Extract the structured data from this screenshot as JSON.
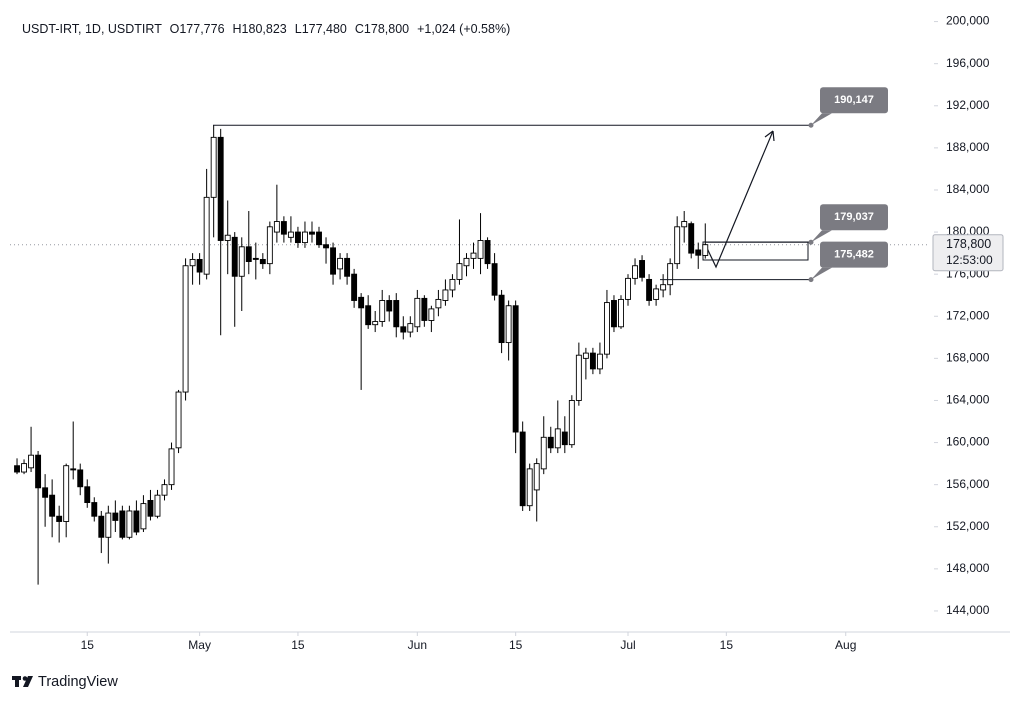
{
  "chart_data": {
    "type": "candlestick",
    "header": {
      "symbol": "USDT-IRT, 1D, USDTIRT",
      "open": "O177,776",
      "high": "H180,823",
      "low": "L177,480",
      "close": "C178,800",
      "change": "+1,024 (+0.58%)"
    },
    "brand": "TradingView",
    "x": [
      "04-05",
      "04-06",
      "04-07",
      "04-08",
      "04-09",
      "04-10",
      "04-11",
      "04-12",
      "04-13",
      "04-14",
      "04-15",
      "04-16",
      "04-17",
      "04-18",
      "04-19",
      "04-20",
      "04-21",
      "04-22",
      "04-23",
      "04-24",
      "04-25",
      "04-26",
      "04-27",
      "04-28",
      "04-29",
      "04-30",
      "05-01",
      "05-02",
      "05-03",
      "05-04",
      "05-05",
      "05-06",
      "05-07",
      "05-08",
      "05-09",
      "05-10",
      "05-11",
      "05-12",
      "05-13",
      "05-14",
      "05-15",
      "05-16",
      "05-17",
      "05-18",
      "05-19",
      "05-20",
      "05-21",
      "05-22",
      "05-23",
      "05-24",
      "05-25",
      "05-26",
      "05-27",
      "05-28",
      "05-29",
      "05-30",
      "05-31",
      "06-01",
      "06-02",
      "06-03",
      "06-04",
      "06-05",
      "06-06",
      "06-07",
      "06-08",
      "06-09",
      "06-10",
      "06-11",
      "06-12",
      "06-13",
      "06-14",
      "06-15",
      "06-16",
      "06-17",
      "06-18",
      "06-19",
      "06-20",
      "06-21",
      "06-22",
      "06-23",
      "06-24",
      "06-25",
      "06-26",
      "06-27",
      "06-28",
      "06-29",
      "06-30",
      "07-01",
      "07-02",
      "07-03",
      "07-04",
      "07-05",
      "07-06",
      "07-07",
      "07-08",
      "07-09",
      "07-10",
      "07-11",
      "07-12"
    ],
    "open": [
      157800,
      157200,
      157600,
      158800,
      155700,
      155000,
      153000,
      152500,
      157500,
      157400,
      155800,
      154300,
      153000,
      151000,
      153300,
      153500,
      151000,
      153500,
      151800,
      154500,
      153000,
      155000,
      156000,
      159500,
      164800,
      176800,
      177400,
      176000,
      183300,
      189000,
      179200,
      179500,
      175800,
      178600,
      177500,
      177400,
      177000,
      180000,
      181000,
      179500,
      180000,
      179000,
      180000,
      180000,
      178800,
      178500,
      176500,
      177500,
      176000,
      173800,
      173000,
      171200,
      171500,
      173500,
      173500,
      171000,
      170500,
      171000,
      173700,
      171600,
      172800,
      173500,
      174500,
      175500,
      176800,
      177500,
      177500,
      179200,
      177000,
      174000,
      169500,
      173000,
      161000,
      154000,
      155500,
      157500,
      160500,
      159500,
      161000,
      159800,
      164000,
      168000,
      168500,
      167000,
      168400,
      173500,
      171000,
      173600,
      175600,
      177300,
      175500,
      173600,
      174500,
      175000,
      177000,
      180500,
      180800,
      178300,
      177776
    ],
    "high": [
      158500,
      158400,
      161500,
      159200,
      157000,
      156500,
      154000,
      158000,
      162000,
      158000,
      156500,
      154800,
      153500,
      154000,
      154500,
      154000,
      154000,
      154500,
      155000,
      155500,
      155500,
      156500,
      160000,
      165000,
      177500,
      178000,
      178000,
      186000,
      190147,
      189800,
      183000,
      180000,
      179500,
      182000,
      179000,
      178000,
      181000,
      184500,
      181500,
      181500,
      180500,
      181000,
      181000,
      180500,
      179500,
      179000,
      178000,
      178000,
      176500,
      174200,
      174000,
      172500,
      174500,
      174000,
      174200,
      172000,
      172000,
      174500,
      174000,
      173000,
      174500,
      175500,
      176000,
      181200,
      178000,
      179000,
      181800,
      179500,
      178000,
      174500,
      173500,
      173500,
      162000,
      158000,
      158500,
      162500,
      161500,
      164000,
      162500,
      164500,
      169500,
      169000,
      169000,
      169500,
      174500,
      174000,
      174000,
      176000,
      177500,
      177800,
      176000,
      175000,
      176000,
      177500,
      181500,
      182000,
      181000,
      179000,
      180823
    ],
    "low": [
      157000,
      157000,
      157200,
      146500,
      152000,
      151000,
      150500,
      151000,
      156500,
      155000,
      153800,
      152500,
      149500,
      148500,
      151500,
      150800,
      150800,
      151200,
      151500,
      152600,
      152800,
      154500,
      155500,
      159000,
      164000,
      175000,
      175000,
      175500,
      179500,
      170200,
      176000,
      171000,
      172500,
      176000,
      175500,
      176500,
      176000,
      179000,
      179000,
      179000,
      178500,
      178500,
      179000,
      178500,
      177000,
      175000,
      175500,
      175000,
      172800,
      165000,
      170800,
      170500,
      171000,
      171500,
      170000,
      169800,
      170000,
      170500,
      171000,
      170500,
      172000,
      173000,
      173800,
      175000,
      175800,
      176500,
      176000,
      176500,
      173500,
      168500,
      167800,
      159000,
      153500,
      153500,
      152500,
      157000,
      159000,
      159000,
      159000,
      159500,
      163500,
      166000,
      166500,
      166500,
      168000,
      170500,
      170800,
      173000,
      175000,
      175300,
      173000,
      173000,
      173800,
      174000,
      176500,
      179000,
      177500,
      176500,
      177480
    ],
    "close": [
      157200,
      158000,
      158800,
      155700,
      154800,
      153000,
      152500,
      157800,
      157400,
      155800,
      154300,
      153000,
      151000,
      153300,
      152600,
      151000,
      153500,
      151500,
      154200,
      153000,
      155000,
      156000,
      159400,
      164800,
      176800,
      177400,
      176200,
      183300,
      189000,
      179200,
      179700,
      175800,
      178600,
      177200,
      177400,
      177000,
      180500,
      181000,
      179800,
      180000,
      179000,
      180000,
      179800,
      178800,
      178500,
      176000,
      177500,
      175800,
      173500,
      172800,
      171200,
      171500,
      173500,
      172500,
      171000,
      170500,
      171300,
      173700,
      171600,
      172700,
      173600,
      174500,
      175500,
      177000,
      177500,
      178000,
      179200,
      177000,
      174000,
      169500,
      173000,
      161000,
      154000,
      157500,
      158000,
      160500,
      159500,
      161300,
      159800,
      164000,
      168300,
      168500,
      167000,
      168400,
      173300,
      171000,
      173600,
      175600,
      176800,
      175700,
      173500,
      174600,
      175000,
      177000,
      180500,
      181000,
      178000,
      177800,
      178800
    ],
    "up_color": "#ffffff",
    "down_color": "#000000",
    "xlim": [
      "04-04",
      "08-13"
    ],
    "xticks": [
      {
        "value": "04-15",
        "label": "15"
      },
      {
        "value": "05-01",
        "label": "May"
      },
      {
        "value": "05-15",
        "label": "15"
      },
      {
        "value": "06-01",
        "label": "Jun"
      },
      {
        "value": "06-15",
        "label": "15"
      },
      {
        "value": "07-01",
        "label": "Jul"
      },
      {
        "value": "07-15",
        "label": "15"
      },
      {
        "value": "08-01",
        "label": "Aug"
      }
    ],
    "ylim": [
      142000,
      201100
    ],
    "yticks": [
      {
        "value": 144000,
        "label": "144,000"
      },
      {
        "value": 148000,
        "label": "148,000"
      },
      {
        "value": 152000,
        "label": "152,000"
      },
      {
        "value": 156000,
        "label": "156,000"
      },
      {
        "value": 160000,
        "label": "160,000"
      },
      {
        "value": 164000,
        "label": "164,000"
      },
      {
        "value": 168000,
        "label": "168,000"
      },
      {
        "value": 172000,
        "label": "172,000"
      },
      {
        "value": 176000,
        "label": "176,000"
      },
      {
        "value": 180000,
        "label": "180,000"
      },
      {
        "value": 184000,
        "label": "184,000"
      },
      {
        "value": 188000,
        "label": "188,000"
      },
      {
        "value": 192000,
        "label": "192,000"
      },
      {
        "value": 196000,
        "label": "196,000"
      },
      {
        "value": 200000,
        "label": "200,000"
      }
    ],
    "levels": [
      {
        "value": 190147,
        "label": "190,147"
      },
      {
        "value": 179037,
        "label": "179,037"
      },
      {
        "value": 175482,
        "label": "175,482"
      }
    ],
    "level_color": "#7b7b82",
    "last_price": {
      "value": 178800,
      "label": "178,800",
      "countdown": "12:53:00"
    }
  }
}
